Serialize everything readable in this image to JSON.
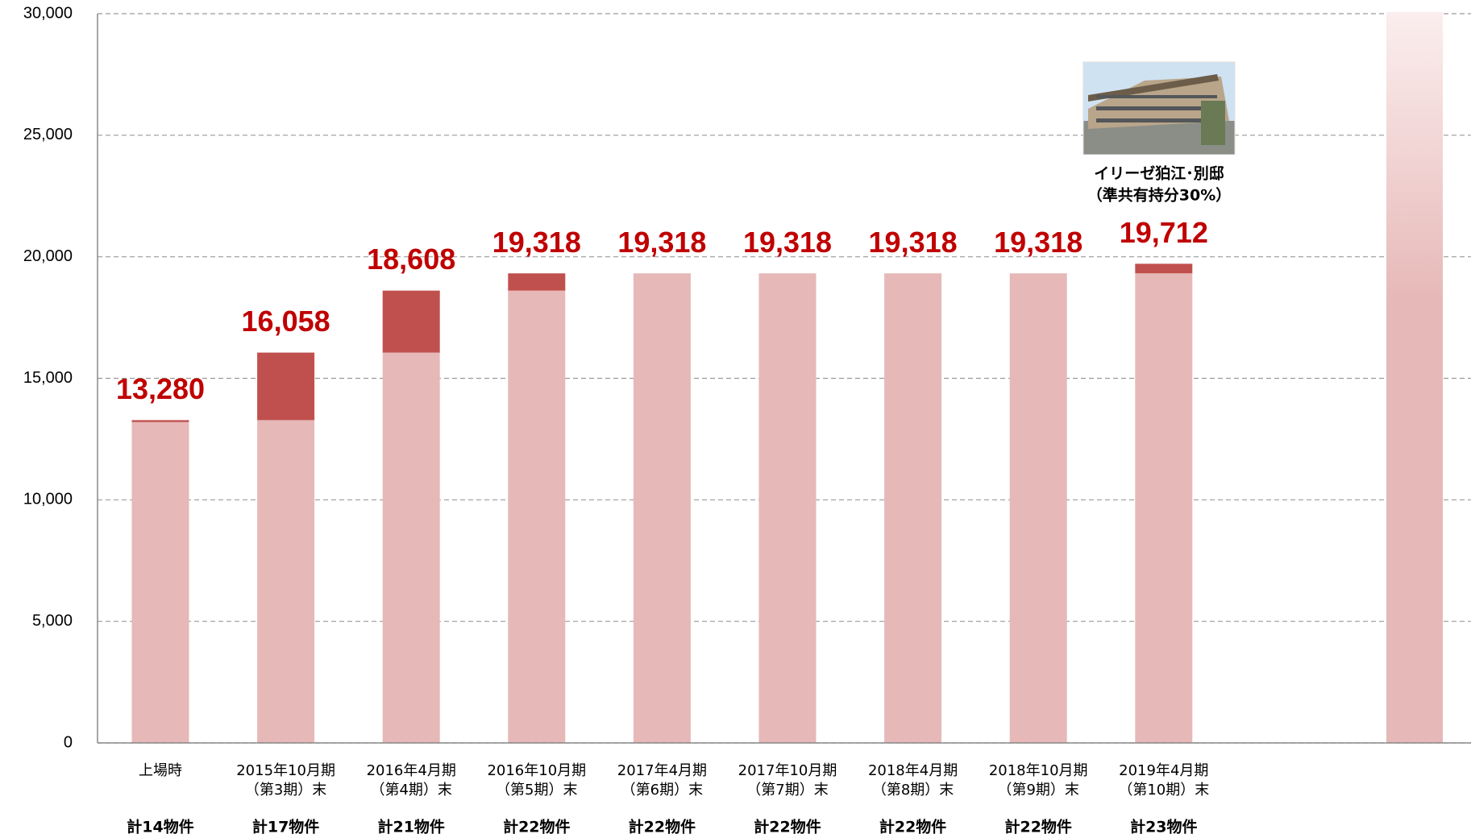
{
  "chart_data": {
    "type": "stacked-bar",
    "categories": [
      [
        "上場時"
      ],
      [
        "2015年10月期",
        "（第3期）末"
      ],
      [
        "2016年4月期",
        "（第4期）末"
      ],
      [
        "2016年10月期",
        "（第5期）末"
      ],
      [
        "2017年4月期",
        "（第6期）末"
      ],
      [
        "2017年10月期",
        "（第7期）末"
      ],
      [
        "2018年4月期",
        "（第8期）末"
      ],
      [
        "2018年10月期",
        "（第9期）末"
      ],
      [
        "2019年4月期",
        "（第10期）末"
      ]
    ],
    "property_counts": [
      "計14物件",
      "計17物件",
      "計21物件",
      "計22物件",
      "計22物件",
      "計22物件",
      "計22物件",
      "計22物件",
      "計23物件"
    ],
    "series": [
      {
        "color": "#e6b8b7",
        "values": [
          13200,
          13280,
          16058,
          18608,
          19318,
          19318,
          19318,
          19318,
          19318
        ]
      },
      {
        "color": "#c0504d",
        "values": [
          80,
          2778,
          2550,
          710,
          0,
          0,
          0,
          0,
          394
        ]
      }
    ],
    "totals": {
      "values": [
        13280,
        16058,
        18608,
        19318,
        19318,
        19318,
        19318,
        19318,
        19712
      ],
      "value_labels": [
        "13,280",
        "16,058",
        "18,608",
        "19,318",
        "19,318",
        "19,318",
        "19,318",
        "19,318",
        "19,712"
      ]
    },
    "annotation": [
      "イリーゼ狛江･別邸",
      "（準共有持分30%）"
    ],
    "ylim": [
      0,
      30000
    ],
    "yticks": [
      0,
      {
        "value": 5000,
        "label": "5,000"
      },
      {
        "value": 10000,
        "label": "10,000"
      },
      {
        "value": 15000,
        "label": "15,000"
      },
      {
        "value": 20000,
        "label": "20,000"
      },
      {
        "value": 25000,
        "label": "25,000"
      },
      {
        "value": 30000,
        "label": "30,000"
      }
    ],
    "grid": true
  }
}
